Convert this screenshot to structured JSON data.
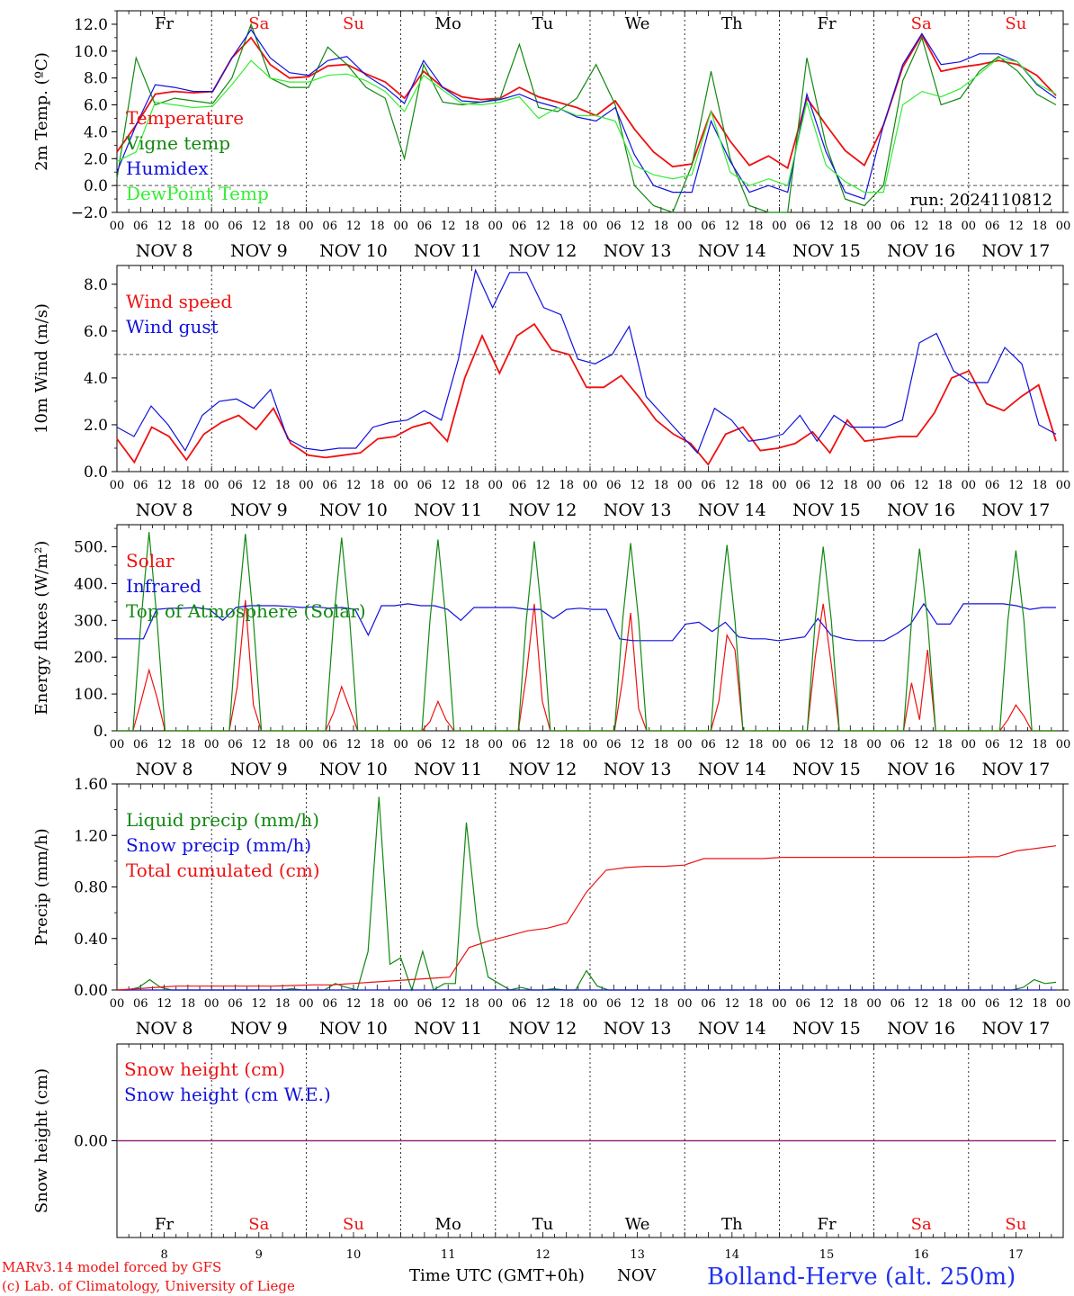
{
  "colors": {
    "red": "#ee1111",
    "green": "#118811",
    "blue": "#1111dd",
    "lightgreen": "#33ee33",
    "purple": "#882288",
    "station_blue": "#2233ee"
  },
  "days": {
    "names": [
      "Fr",
      "Sa",
      "Su",
      "Mo",
      "Tu",
      "We",
      "Th",
      "Fr",
      "Sa",
      "Su"
    ],
    "weekend": [
      false,
      true,
      true,
      false,
      false,
      false,
      false,
      false,
      true,
      true
    ],
    "dates": [
      "NOV  8",
      "NOV  9",
      "NOV 10",
      "NOV 11",
      "NOV 12",
      "NOV 13",
      "NOV 14",
      "NOV 15",
      "NOV 16",
      "NOV 17"
    ],
    "numbers": [
      "8",
      "9",
      "10",
      "11",
      "12",
      "13",
      "14",
      "15",
      "16",
      "17"
    ],
    "hours": [
      "00",
      "06",
      "12",
      "18"
    ],
    "end_hour": "00"
  },
  "footer": {
    "model": "MARv3.14 model forced by GFS",
    "lab": "(c) Lab. of Climatology, University of Liege",
    "time_label": "Time UTC (GMT+0h)",
    "month": "NOV",
    "station": "Bolland-Herve (alt. 250m)"
  },
  "chart_data": [
    {
      "type": "line",
      "ylabel": "2m Temp. (ºC)",
      "ylim": [
        -2,
        13
      ],
      "yticks": [
        "−2.0",
        "0.0",
        "2.0",
        "4.0",
        "6.0",
        "8.0",
        "10.0",
        "12.0"
      ],
      "ytick_values": [
        -2,
        0,
        2,
        4,
        6,
        8,
        10,
        12
      ],
      "reference_line": 0,
      "annotation": "run: 2024110812",
      "x_hours_start": 0,
      "x_step_hours": 6,
      "series": [
        {
          "name": "Temperature",
          "color": "red",
          "values": [
            2.5,
            4.5,
            6.8,
            7.0,
            6.9,
            7.0,
            9.5,
            11.0,
            9.0,
            8.0,
            8.1,
            8.9,
            9.0,
            8.3,
            7.7,
            6.5,
            8.5,
            7.3,
            6.6,
            6.4,
            6.5,
            7.3,
            6.6,
            6.2,
            5.8,
            5.2,
            6.3,
            4.2,
            2.5,
            1.4,
            1.6,
            5.5,
            3.3,
            1.5,
            2.2,
            1.3,
            6.5,
            4.5,
            2.6,
            1.5,
            4.5,
            8.8,
            11.2,
            8.5,
            8.8,
            9.0,
            9.3,
            9.0,
            8.2,
            6.7
          ]
        },
        {
          "name": "Vigne temp",
          "color": "green",
          "values": [
            0.5,
            9.5,
            6.0,
            6.5,
            6.3,
            6.1,
            8.0,
            12.0,
            8.0,
            7.3,
            7.3,
            10.3,
            9.0,
            7.3,
            6.5,
            2.0,
            9.0,
            6.2,
            6.0,
            6.2,
            6.5,
            10.5,
            5.8,
            5.5,
            6.5,
            9.0,
            6.0,
            0.0,
            -1.5,
            -2.5,
            1.5,
            8.5,
            2.0,
            -1.5,
            -2.5,
            -2.5,
            9.5,
            3.0,
            -1.0,
            -1.5,
            0.0,
            7.8,
            11.0,
            6.0,
            6.5,
            8.5,
            9.6,
            8.5,
            6.8,
            6.0
          ]
        },
        {
          "name": "Humidex",
          "color": "blue",
          "values": [
            1.0,
            4.5,
            7.5,
            7.3,
            7.0,
            7.0,
            9.5,
            11.6,
            9.5,
            8.4,
            8.2,
            9.3,
            9.6,
            8.2,
            7.3,
            6.1,
            9.3,
            7.3,
            6.3,
            6.2,
            6.4,
            6.8,
            6.2,
            5.8,
            5.1,
            4.8,
            5.8,
            2.3,
            0.0,
            -0.5,
            -0.5,
            4.8,
            1.8,
            -0.5,
            0.0,
            -0.5,
            6.8,
            2.5,
            -0.5,
            -1.0,
            4.5,
            9.0,
            11.3,
            9.0,
            9.2,
            9.8,
            9.8,
            9.2,
            7.5,
            6.5
          ]
        },
        {
          "name": "DewPoint Temp",
          "color": "lightgreen",
          "values": [
            1.8,
            2.5,
            6.2,
            6.0,
            5.8,
            5.9,
            7.5,
            9.3,
            8.0,
            7.7,
            7.7,
            8.2,
            8.3,
            7.8,
            7.0,
            5.5,
            8.2,
            7.1,
            6.1,
            6.0,
            6.2,
            6.6,
            5.0,
            5.8,
            5.2,
            5.2,
            4.8,
            1.5,
            0.8,
            0.5,
            0.8,
            5.5,
            1.0,
            0.0,
            0.5,
            0.0,
            6.2,
            1.5,
            0.3,
            -0.5,
            -0.5,
            6.0,
            7.0,
            6.6,
            7.2,
            8.3,
            9.5,
            9.2,
            7.6,
            6.8
          ]
        }
      ]
    },
    {
      "type": "line",
      "ylabel": "10m Wind (m/s)",
      "ylim": [
        0,
        8.8
      ],
      "yticks": [
        "0.0",
        "2.0",
        "4.0",
        "6.0",
        "8.0"
      ],
      "ytick_values": [
        0,
        2,
        4,
        6,
        8
      ],
      "reference_line": 5,
      "x_hours_start": 0,
      "x_step_hours": 6,
      "series": [
        {
          "name": "Wind speed",
          "color": "red",
          "values": [
            1.4,
            0.4,
            1.9,
            1.5,
            0.5,
            1.6,
            2.1,
            2.4,
            1.8,
            2.7,
            1.2,
            0.7,
            0.6,
            0.7,
            0.8,
            1.4,
            1.5,
            1.9,
            2.1,
            1.3,
            4.0,
            5.8,
            4.2,
            5.8,
            6.3,
            5.2,
            5.0,
            3.6,
            3.6,
            4.1,
            3.2,
            2.2,
            1.6,
            1.2,
            0.3,
            1.6,
            1.9,
            0.9,
            1.0,
            1.2,
            1.7,
            0.8,
            2.2,
            1.3,
            1.4,
            1.5,
            1.5,
            2.5,
            4.0,
            4.3,
            2.9,
            2.6,
            3.2,
            3.7,
            1.3
          ]
        },
        {
          "name": "Wind gust",
          "color": "blue",
          "values": [
            1.9,
            1.5,
            2.8,
            2.0,
            0.9,
            2.4,
            3.0,
            3.1,
            2.7,
            3.5,
            1.4,
            1.0,
            0.9,
            1.0,
            1.0,
            1.9,
            2.1,
            2.2,
            2.6,
            2.2,
            4.8,
            8.6,
            7.0,
            8.5,
            8.5,
            7.0,
            6.7,
            4.8,
            4.6,
            5.0,
            6.2,
            3.2,
            2.4,
            1.6,
            0.8,
            2.7,
            2.2,
            1.3,
            1.4,
            1.6,
            2.4,
            1.3,
            2.4,
            1.9,
            1.9,
            1.9,
            2.2,
            5.5,
            5.9,
            4.3,
            3.8,
            3.8,
            5.3,
            4.6,
            2.0,
            1.6
          ]
        }
      ]
    },
    {
      "type": "line",
      "ylabel": "Energy fluxes (W/m²)",
      "ylim": [
        0,
        560
      ],
      "yticks": [
        "0.",
        "100.",
        "200.",
        "300.",
        "400.",
        "500."
      ],
      "ytick_values": [
        0,
        100,
        200,
        300,
        400,
        500
      ],
      "x_hours_start": 0,
      "x_step_hours": 6,
      "series": [
        {
          "name": "Solar",
          "color": "red",
          "values": [
            0,
            0,
            0,
            80,
            165,
            90,
            0,
            0,
            0,
            0,
            0,
            0,
            0,
            0,
            0,
            120,
            355,
            70,
            0,
            0,
            0,
            0,
            0,
            0,
            0,
            0,
            0,
            50,
            120,
            60,
            0,
            0,
            0,
            0,
            0,
            0,
            0,
            0,
            0,
            25,
            80,
            30,
            0,
            0,
            0,
            0,
            0,
            0,
            0,
            0,
            0,
            150,
            345,
            80,
            0,
            0,
            0,
            0,
            0,
            0,
            0,
            0,
            0,
            140,
            320,
            60,
            0,
            0,
            0,
            0,
            0,
            0,
            0,
            0,
            0,
            80,
            260,
            220,
            0,
            0,
            0,
            0,
            0,
            0,
            0,
            0,
            0,
            200,
            345,
            180,
            0,
            0,
            0,
            0,
            0,
            0,
            0,
            0,
            0,
            130,
            30,
            220,
            0,
            0,
            0,
            0,
            0,
            0,
            0,
            0,
            0,
            30,
            70,
            40,
            0,
            0,
            0,
            0
          ]
        },
        {
          "name": "Infrared",
          "color": "blue",
          "values": [
            250,
            250,
            250,
            330,
            333,
            333,
            335,
            330,
            300,
            335,
            340,
            340,
            340,
            338,
            335,
            337,
            333,
            335,
            330,
            260,
            340,
            340,
            345,
            340,
            340,
            330,
            300,
            335,
            335,
            335,
            335,
            330,
            330,
            305,
            330,
            333,
            330,
            330,
            250,
            245,
            245,
            245,
            245,
            290,
            295,
            270,
            295,
            255,
            250,
            250,
            245,
            250,
            255,
            305,
            260,
            250,
            245,
            245,
            245,
            265,
            290,
            345,
            290,
            290,
            345,
            345,
            345,
            345,
            340,
            330,
            335,
            335
          ]
        },
        {
          "name": "Top of Atmosphere (Solar)",
          "color": "green",
          "values": [
            0,
            0,
            0,
            300,
            540,
            300,
            0,
            0,
            0,
            0,
            0,
            0,
            0,
            0,
            0,
            300,
            535,
            300,
            0,
            0,
            0,
            0,
            0,
            0,
            0,
            0,
            0,
            300,
            525,
            300,
            0,
            0,
            0,
            0,
            0,
            0,
            0,
            0,
            0,
            300,
            520,
            300,
            0,
            0,
            0,
            0,
            0,
            0,
            0,
            0,
            0,
            300,
            515,
            300,
            0,
            0,
            0,
            0,
            0,
            0,
            0,
            0,
            0,
            300,
            510,
            300,
            0,
            0,
            0,
            0,
            0,
            0,
            0,
            0,
            0,
            300,
            505,
            300,
            0,
            0,
            0,
            0,
            0,
            0,
            0,
            0,
            0,
            300,
            500,
            300,
            0,
            0,
            0,
            0,
            0,
            0,
            0,
            0,
            0,
            300,
            495,
            300,
            0,
            0,
            0,
            0,
            0,
            0,
            0,
            0,
            0,
            300,
            490,
            300,
            0,
            0,
            0,
            0
          ]
        }
      ]
    },
    {
      "type": "line",
      "ylabel": "Precip (mm/h)",
      "ylim": [
        0,
        1.6
      ],
      "yticks": [
        "0.00",
        "0.40",
        "0.80",
        "1.20",
        "1.60"
      ],
      "ytick_values": [
        0,
        0.4,
        0.8,
        1.2,
        1.6
      ],
      "x_hours_start": 0,
      "x_step_hours": 6,
      "series": [
        {
          "name": "Liquid precip (mm/h)",
          "color": "green",
          "values": [
            0,
            0,
            0.02,
            0.08,
            0.02,
            0,
            0,
            0,
            0,
            0,
            0,
            0,
            0,
            0,
            0,
            0,
            0.01,
            0,
            0,
            0,
            0.05,
            0.02,
            0,
            0.3,
            1.5,
            0.2,
            0.25,
            0,
            0.3,
            0,
            0.05,
            0.05,
            1.3,
            0.5,
            0.1,
            0.05,
            0,
            0.02,
            0,
            0,
            0.01,
            0,
            0,
            0.15,
            0.03,
            0,
            0,
            0,
            0,
            0,
            0,
            0,
            0,
            0,
            0,
            0,
            0,
            0,
            0,
            0,
            0,
            0,
            0,
            0,
            0,
            0,
            0,
            0,
            0,
            0,
            0,
            0,
            0,
            0,
            0,
            0,
            0,
            0,
            0,
            0,
            0,
            0,
            0,
            0.02,
            0.08,
            0.05,
            0.06
          ]
        },
        {
          "name": "Snow precip (mm/h)",
          "color": "blue",
          "values": [
            0,
            0,
            0,
            0,
            0,
            0,
            0,
            0,
            0,
            0,
            0,
            0,
            0,
            0,
            0,
            0,
            0,
            0,
            0,
            0,
            0,
            0,
            0,
            0,
            0,
            0,
            0,
            0,
            0,
            0,
            0,
            0,
            0,
            0,
            0,
            0,
            0,
            0,
            0,
            0,
            0,
            0
          ]
        },
        {
          "name": "Total cumulated (cm)",
          "color": "red",
          "values": [
            0,
            0.01,
            0.02,
            0.03,
            0.03,
            0.03,
            0.03,
            0.03,
            0.03,
            0.035,
            0.04,
            0.04,
            0.05,
            0.06,
            0.07,
            0.08,
            0.09,
            0.1,
            0.33,
            0.38,
            0.42,
            0.46,
            0.48,
            0.52,
            0.76,
            0.93,
            0.95,
            0.96,
            0.96,
            0.97,
            1.02,
            1.02,
            1.02,
            1.02,
            1.03,
            1.03,
            1.03,
            1.03,
            1.03,
            1.03,
            1.03,
            1.03,
            1.03,
            1.03,
            1.035,
            1.035,
            1.08,
            1.1,
            1.12
          ]
        }
      ]
    },
    {
      "type": "line",
      "ylabel": "Snow height (cm)",
      "yticks": [
        "0.00"
      ],
      "ytick_values": [
        0
      ],
      "ylim": [
        -1,
        1
      ],
      "x_hours_start": 0,
      "x_step_hours": 6,
      "series": [
        {
          "name": "Snow height (cm)",
          "color": "red",
          "values": [
            0,
            0,
            0,
            0,
            0,
            0,
            0,
            0,
            0,
            0,
            0,
            0,
            0,
            0,
            0,
            0,
            0,
            0,
            0,
            0,
            0,
            0,
            0,
            0,
            0,
            0,
            0,
            0,
            0,
            0,
            0,
            0,
            0,
            0,
            0,
            0,
            0,
            0,
            0,
            0,
            0
          ]
        },
        {
          "name": "Snow height (cm W.E.)",
          "color": "blue",
          "values": [
            0,
            0,
            0,
            0,
            0,
            0,
            0,
            0,
            0,
            0,
            0,
            0,
            0,
            0,
            0,
            0,
            0,
            0,
            0,
            0,
            0,
            0,
            0,
            0,
            0,
            0,
            0,
            0,
            0,
            0,
            0,
            0,
            0,
            0,
            0,
            0,
            0,
            0,
            0,
            0,
            0
          ]
        }
      ]
    }
  ]
}
